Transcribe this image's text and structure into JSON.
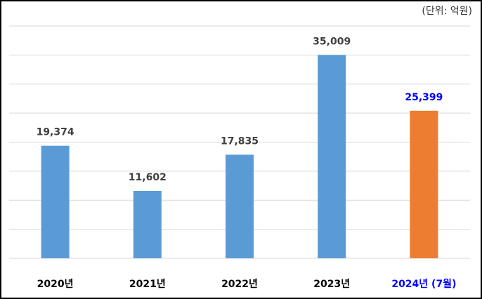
{
  "chart_data": {
    "type": "bar",
    "unit_note": "(단위: 억원)",
    "categories": [
      "2020년",
      "2021년",
      "2022년",
      "2023년",
      "2024년 (7월)"
    ],
    "values": [
      19374,
      11602,
      17835,
      35009,
      25399
    ],
    "value_labels": [
      "19,374",
      "11,602",
      "17,835",
      "35,009",
      "25,399"
    ],
    "colors": [
      "#5b9bd5",
      "#5b9bd5",
      "#5b9bd5",
      "#5b9bd5",
      "#ed7d31"
    ],
    "label_colors": [
      "#000000",
      "#000000",
      "#000000",
      "#000000",
      "#0000ff"
    ],
    "ylim": [
      0,
      40000
    ],
    "yticks": [
      0,
      5000,
      10000,
      15000,
      20000,
      25000,
      30000,
      35000,
      40000
    ],
    "grid": true
  }
}
